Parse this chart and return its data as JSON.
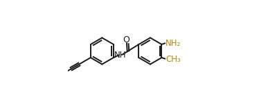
{
  "bg_color": "#ffffff",
  "line_color": "#1a1a1a",
  "text_color_black": "#1a1a1a",
  "text_color_nh2": "#b8860b",
  "text_color_me": "#b8860b",
  "bond_lw": 1.4,
  "font_size": 8.5,
  "figsize": [
    3.74,
    1.47
  ],
  "dpi": 100,
  "xlim": [
    -0.05,
    1.05
  ],
  "ylim": [
    0.05,
    0.95
  ]
}
